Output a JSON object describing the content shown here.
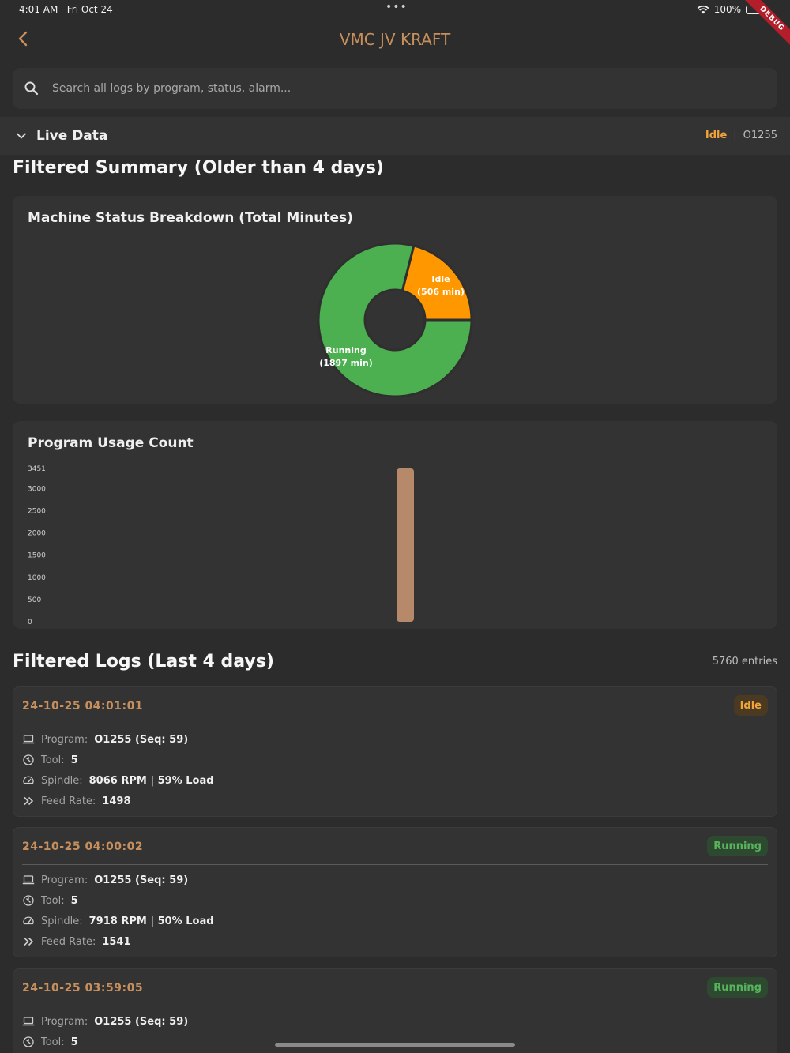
{
  "status_bar": {
    "time": "4:01 AM",
    "date": "Fri Oct 24",
    "dots": "•••",
    "battery": "100%",
    "debug_label": "DEBUG"
  },
  "app_bar": {
    "back_icon": "chevron-left-icon",
    "title": "VMC JV KRAFT"
  },
  "search": {
    "placeholder": "Search all logs by program, status, alarm..."
  },
  "live_data": {
    "title": "Live Data",
    "status": "Idle",
    "separator": "|",
    "program": "O1255"
  },
  "summary": {
    "title": "Filtered Summary (Older than 4 days)"
  },
  "status_chart": {
    "title": "Machine Status Breakdown (Total Minutes)"
  },
  "usage_chart": {
    "title": "Program Usage Count"
  },
  "chart_data": [
    {
      "type": "pie",
      "title": "Machine Status Breakdown (Total Minutes)",
      "donut": true,
      "slices": [
        {
          "label": "Idle",
          "value_label": "(506 min)",
          "value": 506,
          "color": "#ff9800"
        },
        {
          "label": "Running",
          "value_label": "(1897 min)",
          "value": 1897,
          "color": "#4caf50"
        }
      ]
    },
    {
      "type": "bar",
      "title": "Program Usage Count",
      "categories": [
        ""
      ],
      "values": [
        3451
      ],
      "ylim": [
        0,
        3451
      ],
      "yticks": [
        0,
        500,
        1000,
        1500,
        2000,
        2500,
        3000,
        3451
      ],
      "color": "#b5896a",
      "grid": false
    }
  ],
  "logs": {
    "title": "Filtered Logs (Last 4 days)",
    "entries_count": "5760 entries",
    "labels": {
      "program": "Program:",
      "tool": "Tool:",
      "spindle": "Spindle:",
      "feed": "Feed Rate:"
    },
    "items": [
      {
        "timestamp": "24-10-25 04:01:01",
        "status": "Idle",
        "program": "O1255 (Seq: 59)",
        "tool": "5",
        "spindle": "8066 RPM | 59% Load",
        "feed": "1498"
      },
      {
        "timestamp": "24-10-25 04:00:02",
        "status": "Running",
        "program": "O1255 (Seq: 59)",
        "tool": "5",
        "spindle": "7918 RPM | 50% Load",
        "feed": "1541"
      },
      {
        "timestamp": "24-10-25 03:59:05",
        "status": "Running",
        "program": "O1255 (Seq: 59)",
        "tool": "5"
      }
    ]
  },
  "colors": {
    "accent": "#c78f5c",
    "idle": "#f2a33a",
    "running": "#58b35c",
    "background": "#2c2c2c",
    "card": "#333333"
  }
}
